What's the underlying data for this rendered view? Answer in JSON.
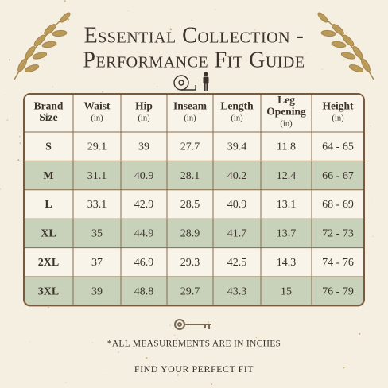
{
  "title": [
    "Essential Collection -",
    "Performance Fit Guide"
  ],
  "table": {
    "columns": [
      {
        "label": [
          "Brand",
          "Size"
        ]
      },
      {
        "label": [
          "Waist"
        ],
        "unit": "(in)"
      },
      {
        "label": [
          "Hip"
        ],
        "unit": "(in)"
      },
      {
        "label": [
          "Inseam"
        ],
        "unit": "(in)"
      },
      {
        "label": [
          "Length"
        ],
        "unit": "(in)"
      },
      {
        "label": [
          "Leg",
          "Opening"
        ],
        "unit": "(in)"
      },
      {
        "label": [
          "Height"
        ],
        "unit": "(in)"
      }
    ],
    "rows": [
      [
        "S",
        29.1,
        39,
        27.7,
        39.4,
        11.8,
        "64 - 65"
      ],
      [
        "M",
        31.1,
        40.9,
        28.1,
        40.2,
        12.4,
        "66 - 67"
      ],
      [
        "L",
        33.1,
        42.9,
        28.5,
        40.9,
        13.1,
        "68 - 69"
      ],
      [
        "XL",
        35,
        44.9,
        28.9,
        41.7,
        13.7,
        "72 - 73"
      ],
      [
        "2XL",
        37,
        46.9,
        29.3,
        42.5,
        14.3,
        "74 - 76"
      ],
      [
        "3XL",
        39,
        48.8,
        29.7,
        43.3,
        15,
        "76 - 79"
      ]
    ]
  },
  "footnote": "*ALL MEASUREMENTS ARE IN INCHES",
  "tagline": "FIND YOUR PERFECT FIT"
}
